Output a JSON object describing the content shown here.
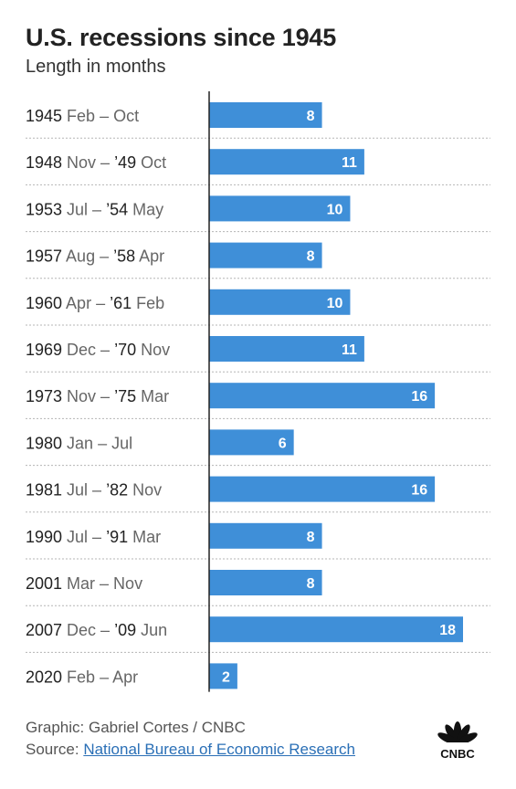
{
  "header": {
    "title": "U.S. recessions since 1945",
    "subtitle": "Length in months"
  },
  "footer": {
    "credit": "Graphic: Gabriel Cortes / CNBC",
    "source_prefix": "Source:",
    "source_link": "National Bureau of Economic Research"
  },
  "logo": {
    "text": "CNBC"
  },
  "colors": {
    "bar": "#3f8fd8",
    "bar_label": "#ffffff",
    "axis": "#222222",
    "divider": "#b5b5b5",
    "year_text": "#222222",
    "month_text": "#666666"
  },
  "chart_data": {
    "type": "bar",
    "orientation": "horizontal",
    "title": "U.S. recessions since 1945",
    "subtitle": "Length in months",
    "xlim": [
      0,
      18
    ],
    "grid": false,
    "categories": [
      {
        "year": "1945",
        "span": "Feb – Oct",
        "parts": [
          {
            "t": "1945",
            "y": true
          },
          {
            "t": " Feb – Oct",
            "y": false
          }
        ]
      },
      {
        "year": "1948",
        "span": "Nov – ’49 Oct",
        "parts": [
          {
            "t": "1948",
            "y": true
          },
          {
            "t": " Nov – ",
            "y": false
          },
          {
            "t": "’49",
            "y": true
          },
          {
            "t": " Oct",
            "y": false
          }
        ]
      },
      {
        "year": "1953",
        "span": "Jul – ’54 May",
        "parts": [
          {
            "t": "1953",
            "y": true
          },
          {
            "t": " Jul – ",
            "y": false
          },
          {
            "t": "’54",
            "y": true
          },
          {
            "t": " May",
            "y": false
          }
        ]
      },
      {
        "year": "1957",
        "span": "Aug – ’58 Apr",
        "parts": [
          {
            "t": "1957",
            "y": true
          },
          {
            "t": " Aug – ",
            "y": false
          },
          {
            "t": "’58",
            "y": true
          },
          {
            "t": " Apr",
            "y": false
          }
        ]
      },
      {
        "year": "1960",
        "span": "Apr – ’61 Feb",
        "parts": [
          {
            "t": "1960",
            "y": true
          },
          {
            "t": " Apr – ",
            "y": false
          },
          {
            "t": "’61",
            "y": true
          },
          {
            "t": " Feb",
            "y": false
          }
        ]
      },
      {
        "year": "1969",
        "span": "Dec – ’70 Nov",
        "parts": [
          {
            "t": "1969",
            "y": true
          },
          {
            "t": " Dec – ",
            "y": false
          },
          {
            "t": "’70",
            "y": true
          },
          {
            "t": " Nov",
            "y": false
          }
        ]
      },
      {
        "year": "1973",
        "span": "Nov – ’75 Mar",
        "parts": [
          {
            "t": "1973",
            "y": true
          },
          {
            "t": " Nov – ",
            "y": false
          },
          {
            "t": "’75",
            "y": true
          },
          {
            "t": " Mar",
            "y": false
          }
        ]
      },
      {
        "year": "1980",
        "span": "Jan – Jul",
        "parts": [
          {
            "t": "1980",
            "y": true
          },
          {
            "t": " Jan – Jul",
            "y": false
          }
        ]
      },
      {
        "year": "1981",
        "span": "Jul – ’82 Nov",
        "parts": [
          {
            "t": "1981",
            "y": true
          },
          {
            "t": " Jul – ",
            "y": false
          },
          {
            "t": "’82",
            "y": true
          },
          {
            "t": " Nov",
            "y": false
          }
        ]
      },
      {
        "year": "1990",
        "span": "Jul – ’91 Mar",
        "parts": [
          {
            "t": "1990",
            "y": true
          },
          {
            "t": " Jul – ",
            "y": false
          },
          {
            "t": "’91",
            "y": true
          },
          {
            "t": " Mar",
            "y": false
          }
        ]
      },
      {
        "year": "2001",
        "span": "Mar – Nov",
        "parts": [
          {
            "t": "2001",
            "y": true
          },
          {
            "t": " Mar – Nov",
            "y": false
          }
        ]
      },
      {
        "year": "2007",
        "span": "Dec – ’09 Jun",
        "parts": [
          {
            "t": "2007",
            "y": true
          },
          {
            "t": " Dec – ",
            "y": false
          },
          {
            "t": "’09",
            "y": true
          },
          {
            "t": " Jun",
            "y": false
          }
        ]
      },
      {
        "year": "2020",
        "span": "Feb – Apr",
        "parts": [
          {
            "t": "2020",
            "y": true
          },
          {
            "t": " Feb – Apr",
            "y": false
          }
        ]
      }
    ],
    "values": [
      8,
      11,
      10,
      8,
      10,
      11,
      16,
      6,
      16,
      8,
      8,
      18,
      2
    ],
    "data_labels": [
      "8",
      "11",
      "10",
      "8",
      "10",
      "11",
      "16",
      "6",
      "16",
      "8",
      "8",
      "18",
      "2"
    ]
  }
}
